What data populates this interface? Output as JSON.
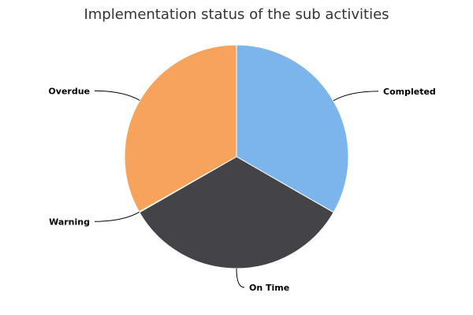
{
  "chart_data": {
    "type": "pie",
    "title": "Implementation status of the sub activities",
    "slices": [
      {
        "name": "Completed",
        "value": 33.3,
        "color": "#7cb5ec"
      },
      {
        "name": "On Time",
        "value": 33.4,
        "color": "#434348"
      },
      {
        "name": "Warning",
        "value": 0.1,
        "color": "#90ed7d"
      },
      {
        "name": "Overdue",
        "value": 33.2,
        "color": "#f7a35c"
      }
    ],
    "start_angle_deg": 0,
    "direction": "clockwise",
    "legend": "none",
    "data_labels": "outside-with-connectors"
  }
}
